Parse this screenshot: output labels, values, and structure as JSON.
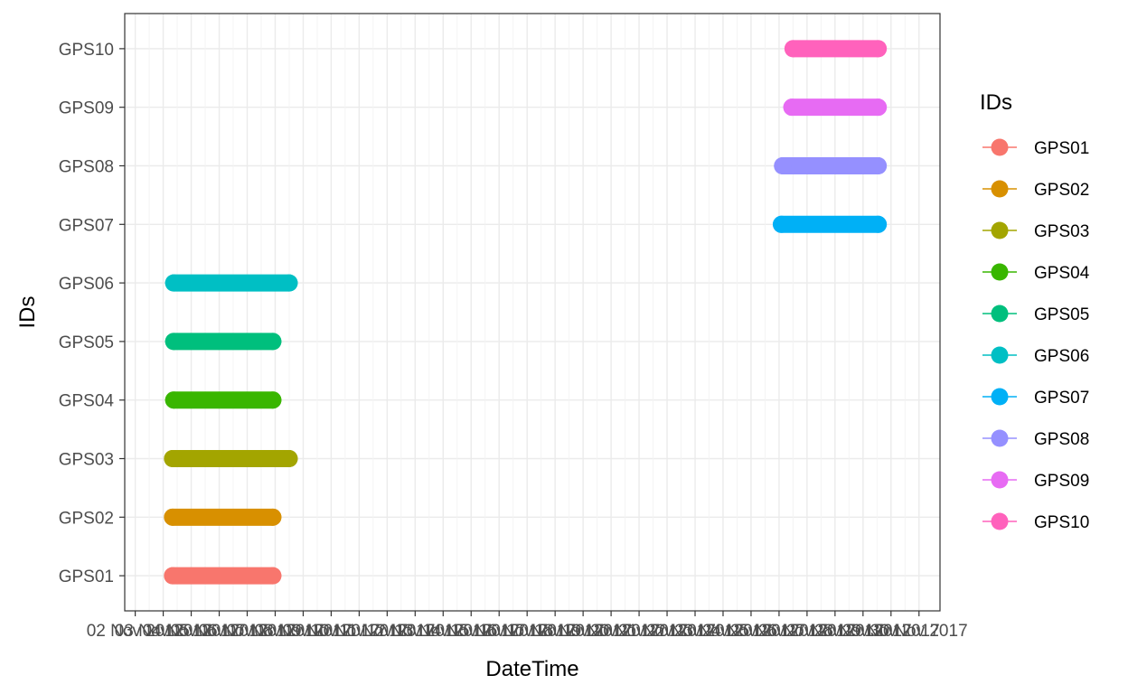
{
  "chart_data": {
    "type": "line",
    "xlabel": "DateTime",
    "ylabel": "IDs",
    "x_axis": {
      "tick_labels": [
        "02 Nov 2017",
        "03 Nov 2017",
        "04 Nov 2017",
        "05 Nov 2017",
        "06 Nov 2017",
        "07 Nov 2017",
        "08 Nov 2017",
        "09 Nov 2017",
        "10 Nov 2017",
        "11 Nov 2017",
        "12 Nov 2017",
        "13 Nov 2017",
        "14 Nov 2017",
        "15 Nov 2017",
        "16 Nov 2017",
        "17 Nov 2017",
        "18 Nov 2017",
        "19 Nov 2017",
        "20 Nov 2017",
        "21 Nov 2017",
        "22 Nov 2017",
        "23 Nov 2017",
        "24 Nov 2017",
        "25 Nov 2017",
        "26 Nov 2017",
        "27 Nov 2017",
        "28 Nov 2017",
        "29 Nov 2017",
        "30 Nov 2017"
      ],
      "range": [
        "2017-11-01 15:00",
        "2017-11-30 18:00"
      ]
    },
    "categories": [
      "GPS01",
      "GPS02",
      "GPS03",
      "GPS04",
      "GPS05",
      "GPS06",
      "GPS07",
      "GPS08",
      "GPS09",
      "GPS10"
    ],
    "grid": true,
    "legend": {
      "title": "IDs",
      "position": "right"
    },
    "series": [
      {
        "name": "GPS01",
        "color": "#F8766D",
        "start": "2017-11-03 08:00",
        "end": "2017-11-06 22:00"
      },
      {
        "name": "GPS02",
        "color": "#D89000",
        "start": "2017-11-03 08:00",
        "end": "2017-11-06 22:00"
      },
      {
        "name": "GPS03",
        "color": "#A3A500",
        "start": "2017-11-03 08:00",
        "end": "2017-11-07 12:00"
      },
      {
        "name": "GPS04",
        "color": "#39B600",
        "start": "2017-11-03 09:00",
        "end": "2017-11-06 22:00"
      },
      {
        "name": "GPS05",
        "color": "#00BF7D",
        "start": "2017-11-03 09:00",
        "end": "2017-11-06 22:00"
      },
      {
        "name": "GPS06",
        "color": "#00BFC4",
        "start": "2017-11-03 09:00",
        "end": "2017-11-07 12:00"
      },
      {
        "name": "GPS07",
        "color": "#00B0F6",
        "start": "2017-11-25 02:00",
        "end": "2017-11-28 13:00"
      },
      {
        "name": "GPS08",
        "color": "#9590FF",
        "start": "2017-11-25 03:00",
        "end": "2017-11-28 13:00"
      },
      {
        "name": "GPS09",
        "color": "#E76BF3",
        "start": "2017-11-25 11:00",
        "end": "2017-11-28 13:00"
      },
      {
        "name": "GPS10",
        "color": "#FF62BC",
        "start": "2017-11-25 12:00",
        "end": "2017-11-28 13:00"
      }
    ]
  }
}
